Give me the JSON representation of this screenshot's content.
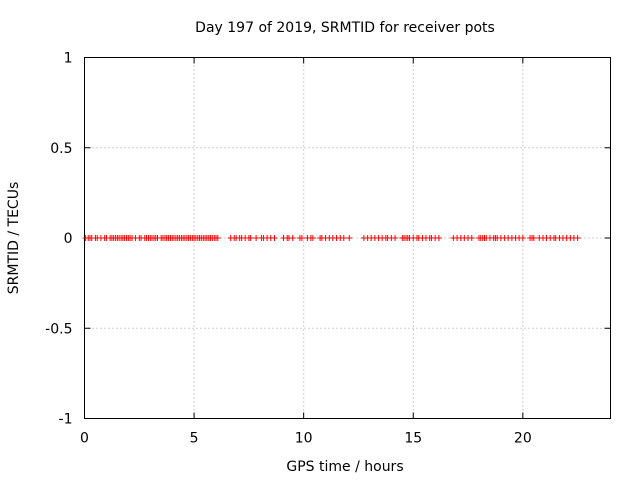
{
  "chart_data": {
    "type": "scatter",
    "title": "Day 197 of 2019, SRMTID for receiver pots",
    "xlabel": "GPS time / hours",
    "ylabel": "SRMTID / TECUs",
    "xlim": [
      0,
      24
    ],
    "ylim": [
      -1,
      1
    ],
    "xticks": [
      0,
      5,
      10,
      15,
      20
    ],
    "yticks": [
      -1,
      -0.5,
      0,
      0.5,
      1
    ],
    "xtick_labels": [
      "0",
      "5",
      "10",
      "15",
      "20"
    ],
    "ytick_labels": [
      "-1",
      "-0.5",
      "0",
      "0.5",
      "1"
    ],
    "grid": true,
    "marker_color": "#ff0000",
    "marker": "+",
    "series": [
      {
        "x": [
          0.05,
          0.17,
          0.25,
          0.33,
          0.5,
          0.58,
          0.75,
          0.92,
          1.0,
          1.17,
          1.25,
          1.33,
          1.42,
          1.5,
          1.58,
          1.67,
          1.75,
          1.83,
          1.92,
          2.0,
          2.08,
          2.17,
          2.33,
          2.5,
          2.58,
          2.75,
          2.83,
          2.92,
          3.0,
          3.08,
          3.17,
          3.25,
          3.33,
          3.5,
          3.58,
          3.67,
          3.75,
          3.83,
          3.92,
          4.0,
          4.08,
          4.17,
          4.25,
          4.33,
          4.42,
          4.5,
          4.58,
          4.67,
          4.75,
          4.83,
          4.92,
          5.0,
          5.08,
          5.17,
          5.25,
          5.33,
          5.42,
          5.5,
          5.58,
          5.67,
          5.75,
          5.83,
          5.92,
          6.0,
          6.08,
          6.67,
          6.83,
          6.92,
          7.08,
          7.17,
          7.33,
          7.5,
          7.58,
          7.83,
          8.08,
          8.17,
          8.33,
          8.5,
          8.67,
          9.08,
          9.25,
          9.33,
          9.5,
          9.83,
          9.92,
          10.17,
          10.33,
          10.42,
          10.75,
          10.83,
          11.0,
          11.17,
          11.33,
          11.5,
          11.67,
          11.83,
          12.08,
          12.75,
          12.92,
          13.08,
          13.25,
          13.42,
          13.58,
          13.75,
          13.83,
          14.0,
          14.17,
          14.5,
          14.58,
          14.67,
          14.75,
          14.83,
          15.0,
          15.17,
          15.25,
          15.42,
          15.58,
          15.75,
          15.83,
          16.0,
          16.17,
          16.83,
          17.0,
          17.17,
          17.33,
          17.5,
          17.67,
          18.0,
          18.08,
          18.17,
          18.25,
          18.33,
          18.5,
          18.67,
          18.75,
          18.83,
          19.0,
          19.17,
          19.33,
          19.5,
          19.67,
          19.83,
          20.0,
          20.33,
          20.42,
          20.5,
          20.75,
          20.92,
          21.08,
          21.25,
          21.42,
          21.5,
          21.67,
          21.83,
          22.0,
          22.17,
          22.33,
          22.5
        ],
        "y": [
          0,
          0,
          0,
          0,
          0,
          0,
          0,
          0,
          0,
          0,
          0,
          0,
          0,
          0,
          0,
          0,
          0,
          0,
          0,
          0,
          0,
          0,
          0,
          0,
          0,
          0,
          0,
          0,
          0,
          0,
          0,
          0,
          0,
          0,
          0,
          0,
          0,
          0,
          0,
          0,
          0,
          0,
          0,
          0,
          0,
          0,
          0,
          0,
          0,
          0,
          0,
          0,
          0,
          0,
          0,
          0,
          0,
          0,
          0,
          0,
          0,
          0,
          0,
          0,
          0,
          0,
          0,
          0,
          0,
          0,
          0,
          0,
          0,
          0,
          0,
          0,
          0,
          0,
          0,
          0,
          0,
          0,
          0,
          0,
          0,
          0,
          0,
          0,
          0,
          0,
          0,
          0,
          0,
          0,
          0,
          0,
          0,
          0,
          0,
          0,
          0,
          0,
          0,
          0,
          0,
          0,
          0,
          0,
          0,
          0,
          0,
          0,
          0,
          0,
          0,
          0,
          0,
          0,
          0,
          0,
          0,
          0,
          0,
          0,
          0,
          0,
          0,
          0,
          0,
          0,
          0,
          0,
          0,
          0,
          0,
          0,
          0,
          0,
          0,
          0,
          0,
          0,
          0,
          0,
          0,
          0,
          0,
          0,
          0,
          0,
          0,
          0,
          0,
          0,
          0,
          0,
          0,
          0
        ]
      }
    ]
  }
}
